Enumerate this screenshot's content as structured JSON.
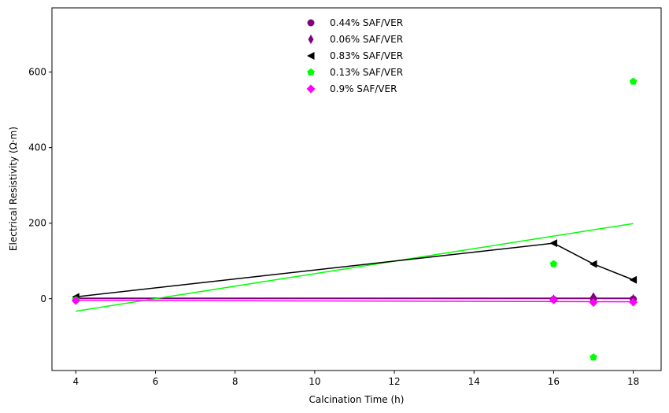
{
  "chart_data": {
    "type": "scatter",
    "xlabel": "Calcination Time (h)",
    "ylabel": "Electrical Resistivity (Ω·m)",
    "xlim": [
      3.4,
      18.7
    ],
    "ylim": [
      -190,
      770
    ],
    "xticks": [
      4,
      6,
      8,
      10,
      12,
      14,
      16,
      18
    ],
    "yticks": [
      0,
      200,
      400,
      600
    ],
    "grid": false,
    "legend_position": "top-center",
    "series": [
      {
        "name": "0.44% SAF/VER",
        "color": "#800080",
        "marker": "circle",
        "x": [
          4,
          16,
          17,
          18
        ],
        "y": [
          -3,
          -2,
          0,
          -1
        ],
        "fit": {
          "x": [
            4,
            18
          ],
          "y": [
            0.5,
            0.5
          ]
        }
      },
      {
        "name": "0.06% SAF/VER",
        "color": "#800080",
        "marker": "thin-diamond",
        "x": [
          4,
          16,
          17,
          18
        ],
        "y": [
          -2,
          -1,
          5,
          0
        ],
        "fit": {
          "x": [
            4,
            18
          ],
          "y": [
            1.5,
            1.5
          ]
        }
      },
      {
        "name": "0.83% SAF/VER",
        "color": "#000000",
        "marker": "triangle-left",
        "x": [
          4,
          16,
          17,
          18
        ],
        "y": [
          5,
          147,
          92,
          50
        ],
        "connect": true
      },
      {
        "name": "0.13% SAF/VER",
        "color": "#00ff00",
        "marker": "pentagon",
        "x": [
          4,
          16,
          17,
          18
        ],
        "y": [
          -3,
          92,
          -155,
          575
        ],
        "fit": {
          "x": [
            4,
            18
          ],
          "y": [
            -33,
            199
          ]
        }
      },
      {
        "name": "0.9% SAF/VER",
        "color": "#ff00ff",
        "marker": "diamond",
        "x": [
          4,
          16,
          17,
          18
        ],
        "y": [
          -5,
          -3,
          -10,
          -9
        ],
        "fit": {
          "x": [
            4,
            18
          ],
          "y": [
            -4,
            -8
          ]
        }
      }
    ]
  }
}
